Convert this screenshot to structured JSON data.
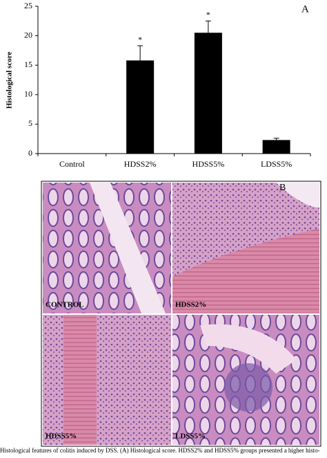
{
  "chart_data": {
    "type": "bar",
    "panel_label": "A",
    "y_label": "Histological score",
    "categories": [
      "Control",
      "HDSS2%",
      "HDSS5%",
      "LDSS5%"
    ],
    "values": [
      0,
      15.8,
      20.5,
      2.3
    ],
    "errors": [
      null,
      2.5,
      2.0,
      0.3
    ],
    "significance": [
      null,
      "*",
      "*",
      null
    ],
    "color": "#000000",
    "ylim": [
      0,
      25
    ],
    "yticks": [
      0,
      5,
      10,
      15,
      20,
      25
    ]
  },
  "panel_b": {
    "label": "B",
    "images": [
      "CONTROL",
      "HDSS2%",
      "HDSS5%",
      "LDSS5%"
    ]
  },
  "caption": "Histological features of colitis induced by DSS. (A) Histological score. HDSS2% and HDSS5% groups presented a higher histo-"
}
